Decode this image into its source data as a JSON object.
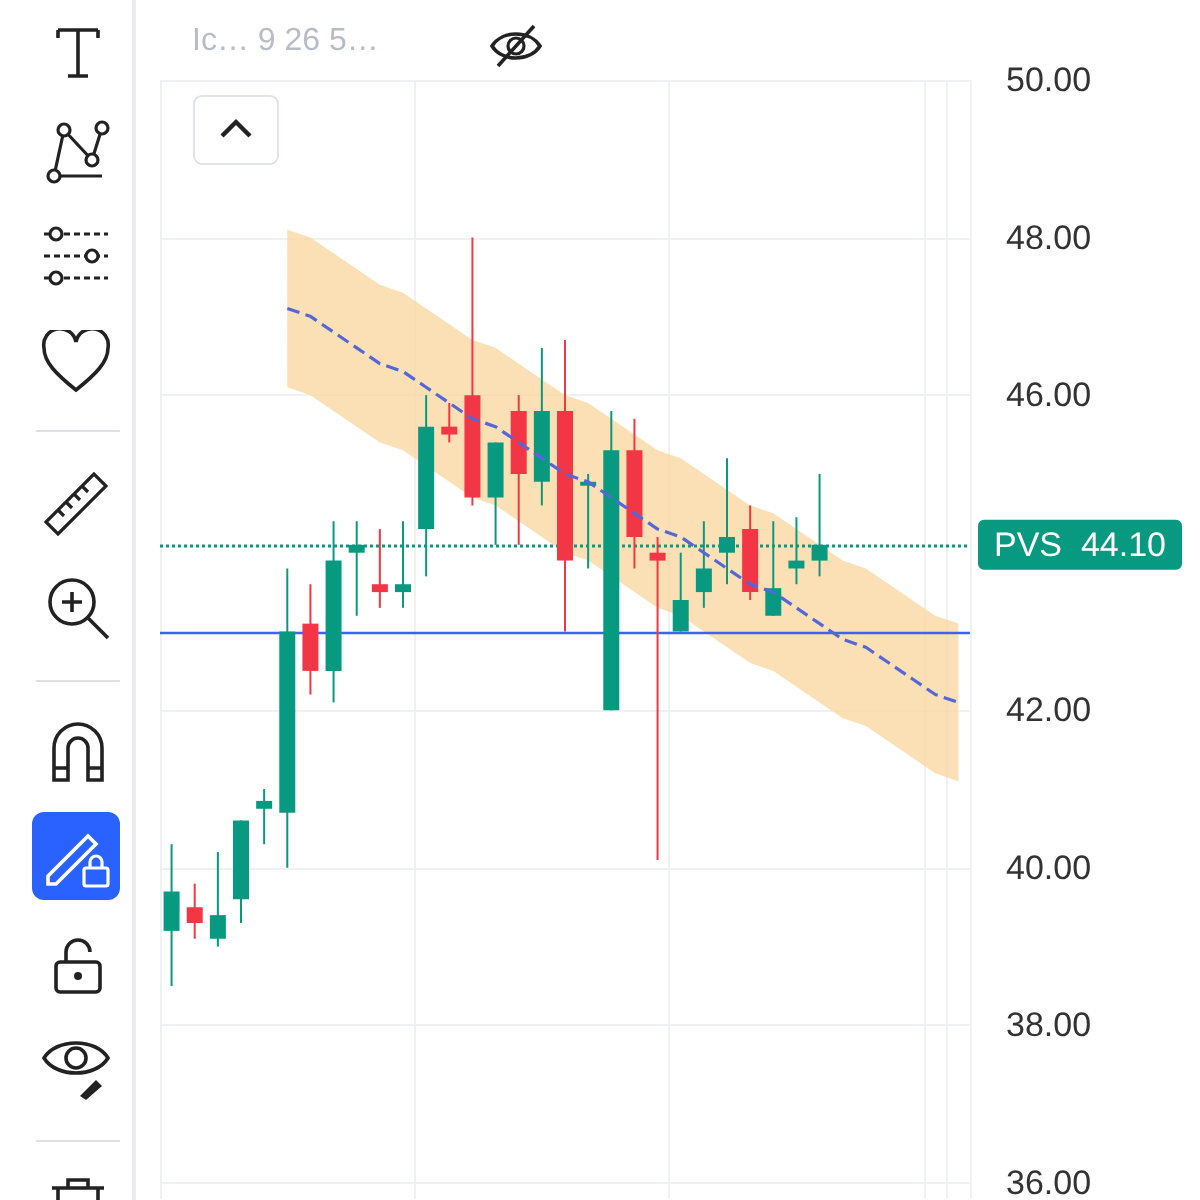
{
  "chart_data": {
    "type": "candlestick",
    "categories": [
      null,
      null,
      null,
      null,
      null,
      null,
      null,
      null,
      null,
      null,
      null,
      null,
      null,
      null,
      null,
      null,
      null,
      null,
      null,
      null,
      null,
      null,
      null,
      null,
      null,
      null,
      null,
      null,
      null,
      null,
      null,
      null,
      null,
      null,
      null
    ],
    "ohlc": [
      [
        39.2,
        40.3,
        38.5,
        39.7
      ],
      [
        39.5,
        39.8,
        39.1,
        39.3
      ],
      [
        39.1,
        40.2,
        39.0,
        39.4
      ],
      [
        39.6,
        40.6,
        39.3,
        40.6
      ],
      [
        40.75,
        41.0,
        40.3,
        40.85
      ],
      [
        40.7,
        43.8,
        40.0,
        43.0
      ],
      [
        43.1,
        43.6,
        42.2,
        42.5
      ],
      [
        42.5,
        44.4,
        42.1,
        43.9
      ],
      [
        44.0,
        44.4,
        43.2,
        44.1
      ],
      [
        43.6,
        44.3,
        43.3,
        43.5
      ],
      [
        43.5,
        44.4,
        43.3,
        43.6
      ],
      [
        44.3,
        46.0,
        43.7,
        45.6
      ],
      [
        45.6,
        45.9,
        45.4,
        45.5
      ],
      [
        46.0,
        48.0,
        44.6,
        44.7
      ],
      [
        44.7,
        45.4,
        44.1,
        45.4
      ],
      [
        45.8,
        46.0,
        44.1,
        45.0
      ],
      [
        44.9,
        46.6,
        44.6,
        45.8
      ],
      [
        45.8,
        46.7,
        43.0,
        43.9
      ],
      [
        44.85,
        45.0,
        43.8,
        44.9
      ],
      [
        42.0,
        45.8,
        42.0,
        45.3
      ],
      [
        45.3,
        45.7,
        43.8,
        44.2
      ],
      [
        44.0,
        44.2,
        40.1,
        43.9
      ],
      [
        43.0,
        44.0,
        43.0,
        43.4
      ],
      [
        43.5,
        44.4,
        43.3,
        43.8
      ],
      [
        44.0,
        45.2,
        43.6,
        44.2
      ],
      [
        44.3,
        44.6,
        43.4,
        43.5
      ],
      [
        43.2,
        44.4,
        43.2,
        43.55
      ],
      [
        43.8,
        44.45,
        43.6,
        43.9
      ],
      [
        43.9,
        45.0,
        43.7,
        44.1
      ],
      null,
      null,
      null,
      null,
      null,
      null
    ],
    "colors": [
      "#089981",
      "#f23645",
      "#089981",
      "#089981",
      "#089981",
      "#089981",
      "#f23645",
      "#089981",
      "#089981",
      "#f23645",
      "#089981",
      "#089981",
      "#f23645",
      "#f23645",
      "#089981",
      "#f23645",
      "#089981",
      "#f23645",
      "#089981",
      "#089981",
      "#f23645",
      "#f23645",
      "#089981",
      "#089981",
      "#089981",
      "#f23645",
      "#089981",
      "#089981",
      "#089981",
      null,
      null,
      null,
      null,
      null,
      null
    ],
    "series": [
      {
        "type": "line",
        "color": "#5567d8",
        "line_style": "dashed",
        "values": [
          null,
          null,
          null,
          null,
          null,
          47.1,
          47.0,
          46.8,
          46.6,
          46.4,
          46.3,
          46.1,
          45.9,
          45.7,
          45.6,
          45.4,
          45.2,
          45.0,
          44.9,
          44.7,
          44.5,
          44.3,
          44.2,
          44.0,
          43.8,
          43.6,
          43.5,
          43.3,
          43.1,
          42.9,
          42.8,
          42.6,
          42.4,
          42.2,
          42.1
        ],
        "upper": [
          null,
          null,
          null,
          null,
          null,
          48.1,
          48.0,
          47.8,
          47.6,
          47.4,
          47.3,
          47.1,
          46.9,
          46.7,
          46.6,
          46.4,
          46.2,
          46.0,
          45.9,
          45.7,
          45.5,
          45.3,
          45.2,
          45.0,
          44.8,
          44.6,
          44.5,
          44.3,
          44.1,
          43.9,
          43.8,
          43.6,
          43.4,
          43.2,
          43.1
        ],
        "lower": [
          null,
          null,
          null,
          null,
          null,
          46.1,
          46.0,
          45.8,
          45.6,
          45.4,
          45.3,
          45.1,
          44.9,
          44.7,
          44.6,
          44.4,
          44.2,
          44.0,
          43.9,
          43.7,
          43.5,
          43.3,
          43.2,
          43.0,
          42.8,
          42.6,
          42.5,
          42.3,
          42.1,
          41.9,
          41.8,
          41.6,
          41.4,
          41.2,
          41.1
        ]
      }
    ],
    "ylim": [
      35.8,
      50.0
    ],
    "yticks": [
      {
        "value": 36,
        "label": "36.00"
      },
      {
        "value": 38,
        "label": "38.00"
      },
      {
        "value": 40,
        "label": "40.00"
      },
      {
        "value": 42,
        "label": "42.00"
      },
      {
        "value": 46,
        "label": "46.00"
      },
      {
        "value": 48,
        "label": "48.00"
      },
      {
        "value": 50,
        "label": "50.00"
      }
    ],
    "tick_labels": "y",
    "grid": true,
    "ref_lines": [
      {
        "axis": "y",
        "value": 43.0,
        "color": "#3d63f2",
        "line_style": "solid"
      },
      {
        "axis": "y",
        "value": 44.1,
        "label": "PVS  44.10",
        "color": "#089981",
        "line_style": "dotted"
      }
    ],
    "annotations": [
      "Ic…  9 26 5…"
    ]
  }
}
